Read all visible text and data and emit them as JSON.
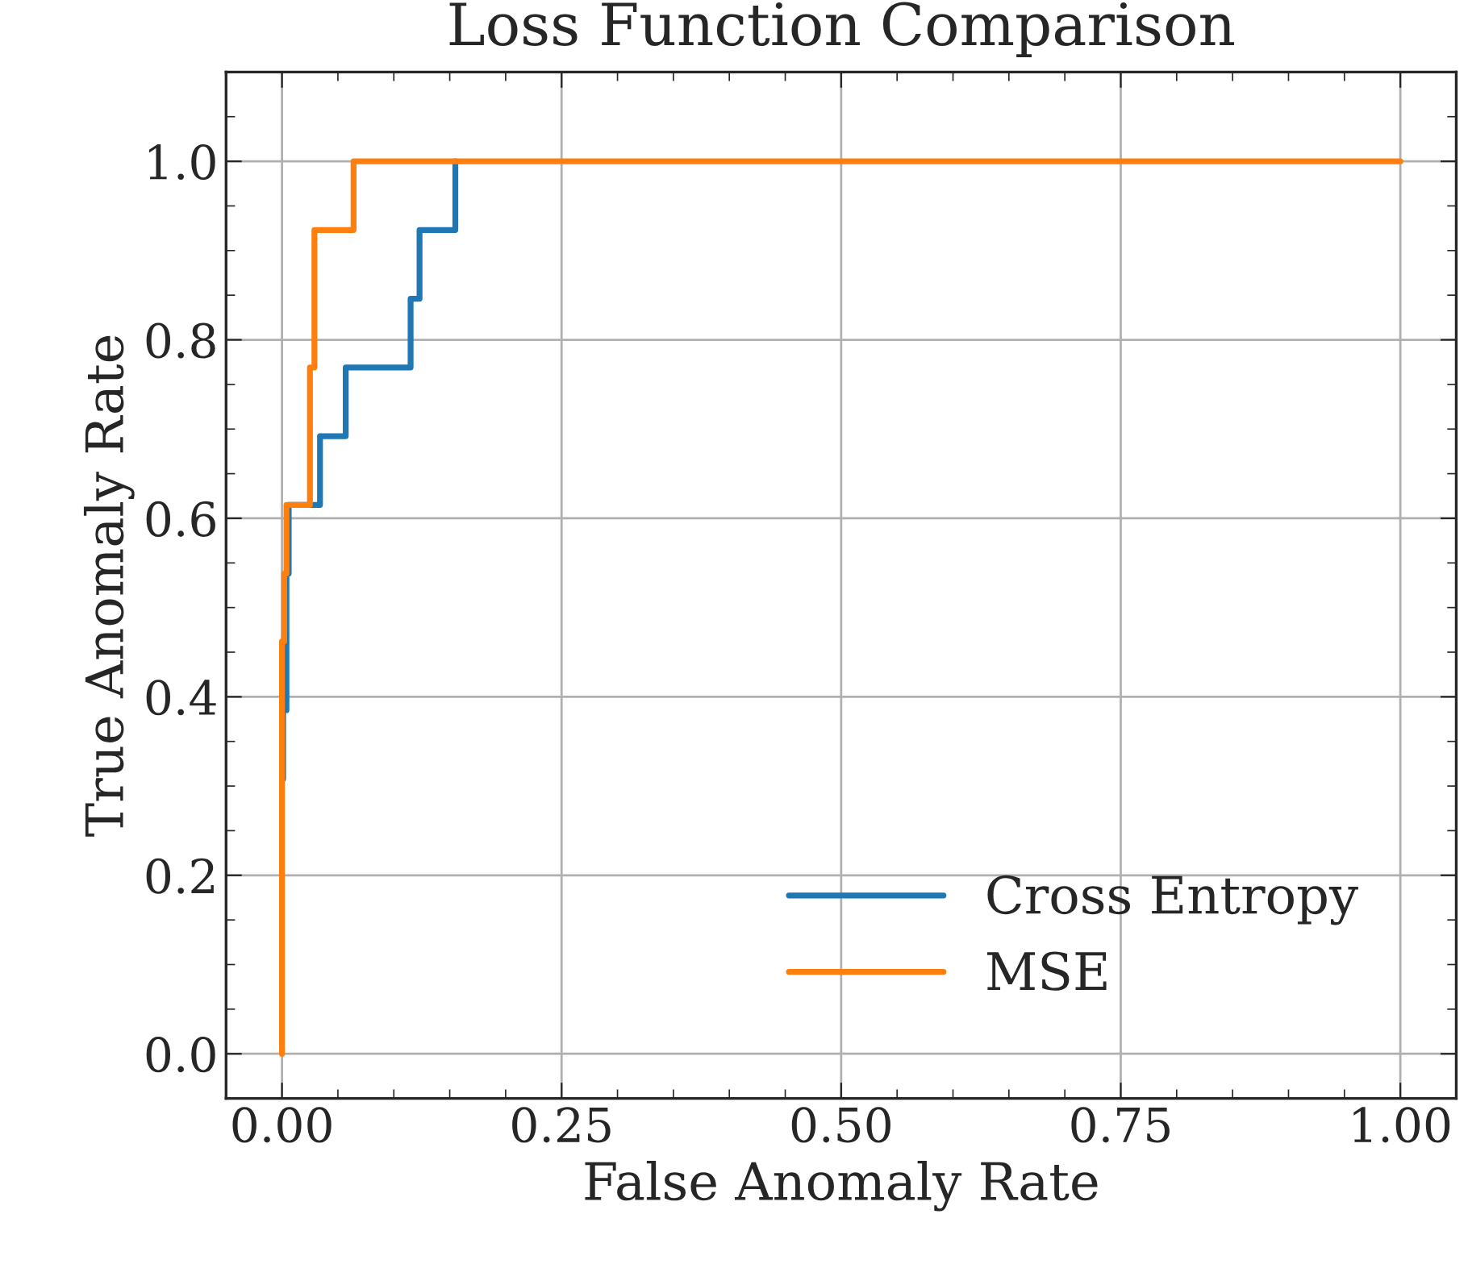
{
  "chart_data": {
    "type": "line",
    "title": "Loss Function Comparison",
    "xlabel": "False Anomaly Rate",
    "ylabel": "True Anomaly Rate",
    "series": [
      {
        "name": "Cross Entropy",
        "color": "#1f77b4",
        "x": [
          0.001,
          0.001,
          0.004,
          0.004,
          0.006,
          0.006,
          0.034,
          0.034,
          0.057,
          0.057,
          0.115,
          0.115,
          0.123,
          0.123,
          0.155,
          0.155
        ],
        "values": [
          0.308,
          0.385,
          0.385,
          0.538,
          0.538,
          0.615,
          0.615,
          0.692,
          0.692,
          0.769,
          0.769,
          0.846,
          0.846,
          0.923,
          0.923,
          1.0
        ]
      },
      {
        "name": "MSE",
        "color": "#ff7f0e",
        "x": [
          0,
          0,
          0.002,
          0.002,
          0.004,
          0.004,
          0.025,
          0.025,
          0.029,
          0.029,
          0.064,
          0.064,
          1.0
        ],
        "values": [
          0,
          0.462,
          0.462,
          0.538,
          0.538,
          0.615,
          0.615,
          0.769,
          0.769,
          0.923,
          0.923,
          1.0,
          1.0
        ]
      }
    ],
    "xlim": [
      -0.05,
      1.05
    ],
    "ylim": [
      -0.05,
      1.1
    ],
    "xticks": [
      {
        "value": 0,
        "label": "0.00"
      },
      {
        "value": 0.25,
        "label": "0.25"
      },
      {
        "value": 0.5,
        "label": "0.50"
      },
      {
        "value": 0.75,
        "label": "0.75"
      },
      {
        "value": 1.0,
        "label": "1.00"
      }
    ],
    "yticks": [
      {
        "value": 0,
        "label": "0.0"
      },
      {
        "value": 0.2,
        "label": "0.2"
      },
      {
        "value": 0.4,
        "label": "0.4"
      },
      {
        "value": 0.6,
        "label": "0.6"
      },
      {
        "value": 0.8,
        "label": "0.8"
      },
      {
        "value": 1.0,
        "label": "1.0"
      }
    ],
    "grid": true,
    "legend": "bottom right",
    "line_style": "solid",
    "marker": "none"
  }
}
